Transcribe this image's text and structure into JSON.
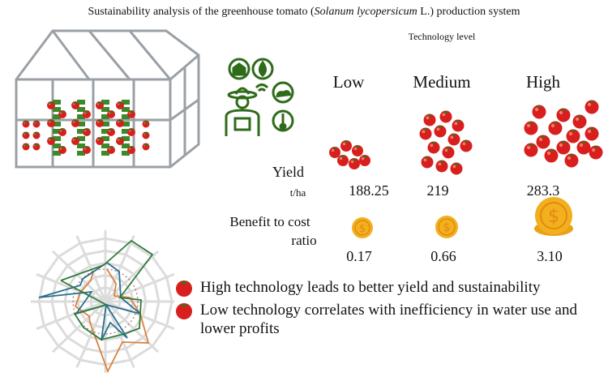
{
  "title": {
    "pre": "Sustainability analysis of the greenhouse tomato (",
    "italic": "Solanum lycopersicum",
    "post": " L.) production system"
  },
  "technology_level_label": "Technology level",
  "levels": [
    "Low",
    "Medium",
    "High"
  ],
  "yield": {
    "label": "Yield",
    "unit": "t/ha",
    "values": [
      "188.25",
      "219",
      "283.3"
    ]
  },
  "benefit_cost": {
    "label_line1": "Benefit to cost",
    "label_line2": "ratio",
    "values": [
      "0.17",
      "0.66",
      "3.10"
    ]
  },
  "conclusions": [
    "High technology leads to better yield and sustainability",
    "Low technology correlates with inefficiency in water use and lower profits"
  ],
  "icons": [
    "greenhouse-illustration",
    "smart-farmer-icon",
    "tomato-cluster-icon",
    "coin-icon",
    "radar-web-chart",
    "tomato-bullet-icon"
  ],
  "colors": {
    "green": "#2e6b1a",
    "tomato": "#d91e1e",
    "coin": "#f2b01e",
    "radar_green": "#2f7a3a",
    "radar_blue": "#2a6f8f",
    "radar_orange": "#d9823b"
  }
}
